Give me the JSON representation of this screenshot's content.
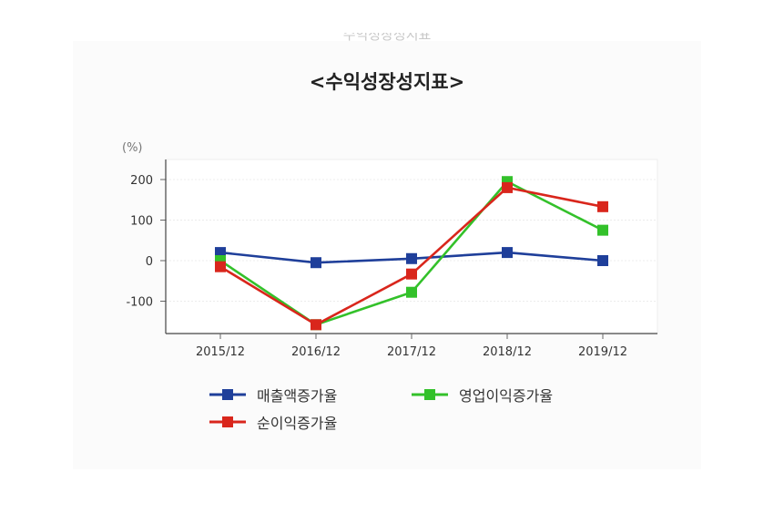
{
  "page": {
    "ghost_title": "수익성장성지표",
    "title": "<수익성장성지표>"
  },
  "chart_data": {
    "type": "line",
    "title": "<수익성장성지표>",
    "unit_label": "(%)",
    "categories": [
      "2015/12",
      "2016/12",
      "2017/12",
      "2018/12",
      "2019/12"
    ],
    "ylim": [
      -180,
      250
    ],
    "yticks": [
      200,
      100,
      0,
      -100
    ],
    "ytick_labels": [
      "200",
      "100",
      "0",
      "-100"
    ],
    "grid": true,
    "legend_position": "bottom",
    "series": [
      {
        "name": "매출액증가율",
        "color": "#1f3f9a",
        "values": [
          20,
          -5,
          5,
          20,
          0
        ]
      },
      {
        "name": "영업이익증가율",
        "color": "#33c12a",
        "values": [
          0,
          -158,
          -78,
          195,
          75
        ]
      },
      {
        "name": "순이익증가율",
        "color": "#d9261c",
        "values": [
          -15,
          -158,
          -33,
          180,
          133
        ]
      }
    ]
  }
}
